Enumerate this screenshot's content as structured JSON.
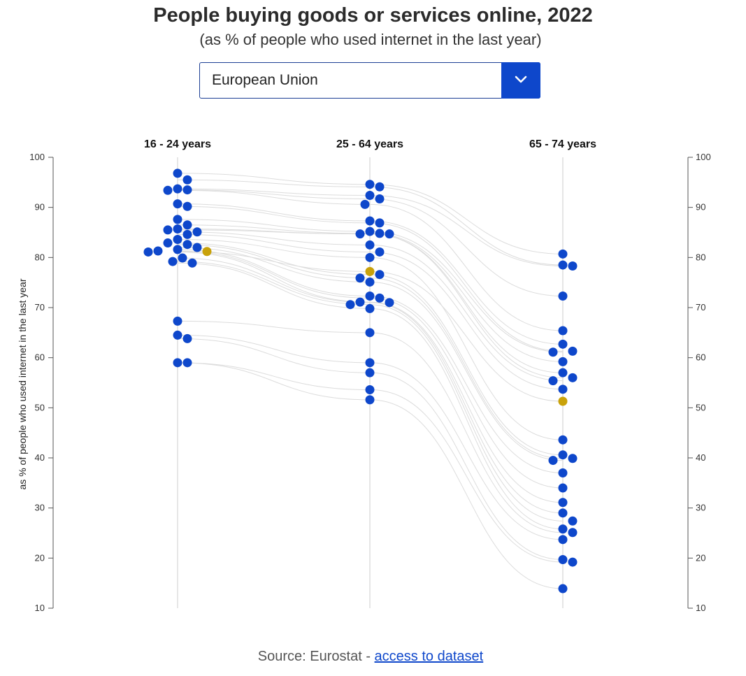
{
  "header": {
    "title": "People buying goods or services online, 2022",
    "subtitle": "(as % of people who used internet in the last year)"
  },
  "selector": {
    "value": "European Union",
    "icon": "chevron-down-icon"
  },
  "footer": {
    "source_text": "Source: Eurostat - ",
    "link_text": "access to dataset"
  },
  "colors": {
    "point": "#0e47cb",
    "highlight": "#c9a20a",
    "line": "#dcdcdc",
    "axis": "#555555"
  },
  "chart_data": {
    "type": "scatter",
    "ylabel": "as % of people who used internet in the last year",
    "ylim": [
      10,
      100
    ],
    "yticks": [
      10,
      20,
      30,
      40,
      50,
      60,
      70,
      80,
      90,
      100
    ],
    "categories": [
      "16 - 24 years",
      "25 - 64 years",
      "65 - 74 years"
    ],
    "highlight": {
      "values": [
        81.2,
        77.2,
        51.3
      ]
    },
    "series": [
      {
        "values": [
          96.8,
          94.6,
          80.7
        ]
      },
      {
        "values": [
          95.5,
          94.1,
          78.5
        ]
      },
      {
        "values": [
          93.7,
          92.4,
          78.3
        ]
      },
      {
        "values": [
          93.5,
          91.7,
          72.3
        ]
      },
      {
        "values": [
          93.4,
          90.6,
          65.4
        ]
      },
      {
        "values": [
          90.7,
          87.3,
          62.7
        ]
      },
      {
        "values": [
          90.2,
          86.9,
          61.3
        ]
      },
      {
        "values": [
          87.6,
          85.2,
          61.1
        ]
      },
      {
        "values": [
          86.5,
          84.8,
          59.2
        ]
      },
      {
        "values": [
          85.7,
          84.7,
          57.0
        ]
      },
      {
        "values": [
          85.5,
          84.7,
          56.0
        ]
      },
      {
        "values": [
          85.1,
          82.5,
          55.4
        ]
      },
      {
        "values": [
          84.6,
          81.1,
          53.7
        ]
      },
      {
        "values": [
          83.6,
          80.0,
          43.6
        ]
      },
      {
        "values": [
          82.9,
          76.6,
          40.6
        ]
      },
      {
        "values": [
          82.6,
          75.9,
          39.9
        ]
      },
      {
        "values": [
          82.0,
          75.1,
          39.5
        ]
      },
      {
        "values": [
          81.6,
          72.3,
          37.0
        ]
      },
      {
        "values": [
          81.3,
          71.9,
          34.0
        ]
      },
      {
        "values": [
          81.1,
          71.1,
          31.1
        ]
      },
      {
        "values": [
          79.9,
          71.0,
          29.0
        ]
      },
      {
        "values": [
          79.2,
          70.6,
          27.4
        ]
      },
      {
        "values": [
          78.9,
          69.8,
          25.8
        ]
      },
      {
        "values": [
          67.3,
          65.0,
          25.1
        ]
      },
      {
        "values": [
          64.5,
          59.0,
          23.7
        ]
      },
      {
        "values": [
          63.8,
          57.0,
          19.7
        ]
      },
      {
        "values": [
          59.0,
          53.6,
          19.2
        ]
      },
      {
        "values": [
          59.0,
          51.6,
          13.9
        ]
      }
    ]
  }
}
